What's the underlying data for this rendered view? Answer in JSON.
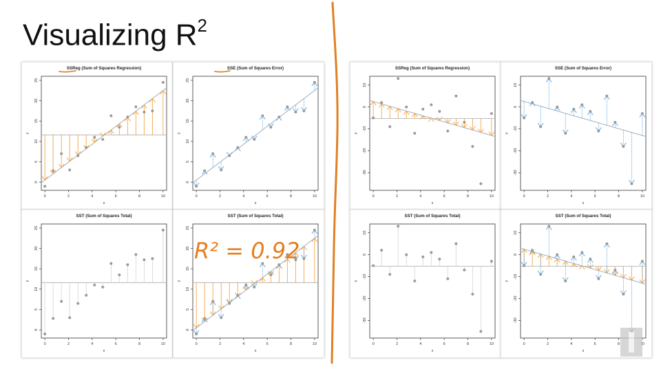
{
  "slide": {
    "title_text": "Visualizing R",
    "title_sup": "2",
    "annotation": "R² = 0.92"
  },
  "colors": {
    "point": "#9a9a9a",
    "fit_line": "#a9b4c4",
    "mean_line": "#b5b5b5",
    "orange": "#f5a543",
    "blue": "#67a9e0",
    "axis": "#333333",
    "divider": "#e07f22",
    "annotation": "#e87d1e",
    "underline": "#e08a2e"
  },
  "chart_data": [
    {
      "id": "a-ssreg",
      "type": "scatter",
      "title": "SSReg (Sum of Squares Regression)",
      "xlabel": "x",
      "ylabel": "y",
      "xlim": [
        -0.3,
        10.3
      ],
      "ylim": [
        -2,
        26
      ],
      "xticks": [
        0,
        2,
        4,
        6,
        8,
        10
      ],
      "yticks": [
        0,
        5,
        10,
        15,
        20,
        25
      ],
      "fit": [
        0.5,
        2.2
      ],
      "mean": 11.6,
      "segments": [
        "ssreg"
      ],
      "x": [
        0,
        0.7,
        1.4,
        2.1,
        2.8,
        3.5,
        4.2,
        4.9,
        5.6,
        6.3,
        7.0,
        7.7,
        8.4,
        9.1,
        10.0
      ],
      "y": [
        -1.0,
        2.8,
        7.0,
        3.0,
        6.5,
        8.5,
        11.0,
        10.5,
        16.3,
        13.5,
        16.0,
        18.5,
        17.2,
        17.5,
        24.5
      ]
    },
    {
      "id": "a-sse",
      "type": "scatter",
      "title": "SSE (Sum of Squares Error)",
      "xlabel": "x",
      "ylabel": "y",
      "xlim": [
        -0.3,
        10.3
      ],
      "ylim": [
        -2,
        26
      ],
      "xticks": [
        0,
        2,
        4,
        6,
        8,
        10
      ],
      "yticks": [
        0,
        5,
        10,
        15,
        20,
        25
      ],
      "fit": [
        0.5,
        2.2
      ],
      "mean": 11.6,
      "segments": [
        "sse"
      ],
      "x": [
        0,
        0.7,
        1.4,
        2.1,
        2.8,
        3.5,
        4.2,
        4.9,
        5.6,
        6.3,
        7.0,
        7.7,
        8.4,
        9.1,
        10.0
      ],
      "y": [
        -1.0,
        2.8,
        7.0,
        3.0,
        6.5,
        8.5,
        11.0,
        10.5,
        16.3,
        13.5,
        16.0,
        18.5,
        17.2,
        17.5,
        24.5
      ]
    },
    {
      "id": "a-sst",
      "type": "scatter",
      "title": "SST (Sum of Squares Total)",
      "xlabel": "x",
      "ylabel": "y",
      "xlim": [
        -0.3,
        10.3
      ],
      "ylim": [
        -2,
        26
      ],
      "xticks": [
        0,
        2,
        4,
        6,
        8,
        10
      ],
      "yticks": [
        0,
        5,
        10,
        15,
        20,
        25
      ],
      "fit": null,
      "mean": 11.6,
      "segments": [
        "sst"
      ],
      "x": [
        0,
        0.7,
        1.4,
        2.1,
        2.8,
        3.5,
        4.2,
        4.9,
        5.6,
        6.3,
        7.0,
        7.7,
        8.4,
        9.1,
        10.0
      ],
      "y": [
        -1.0,
        2.8,
        7.0,
        3.0,
        6.5,
        8.5,
        11.0,
        10.5,
        16.3,
        13.5,
        16.0,
        18.5,
        17.2,
        17.5,
        24.5
      ]
    },
    {
      "id": "a-sst2",
      "type": "scatter",
      "title": "SST (Sum of Squares Total)",
      "xlabel": "x",
      "ylabel": "y",
      "xlim": [
        -0.3,
        10.3
      ],
      "ylim": [
        -2,
        26
      ],
      "xticks": [
        0,
        2,
        4,
        6,
        8,
        10
      ],
      "yticks": [
        0,
        5,
        10,
        15,
        20,
        25
      ],
      "fit": [
        0.5,
        2.2
      ],
      "mean": 11.6,
      "segments": [
        "ssreg",
        "sse"
      ],
      "x": [
        0,
        0.7,
        1.4,
        2.1,
        2.8,
        3.5,
        4.2,
        4.9,
        5.6,
        6.3,
        7.0,
        7.7,
        8.4,
        9.1,
        10.0
      ],
      "y": [
        -1.0,
        2.8,
        7.0,
        3.0,
        6.5,
        8.5,
        11.0,
        10.5,
        16.3,
        13.5,
        16.0,
        18.5,
        17.2,
        17.5,
        24.5
      ]
    },
    {
      "id": "b-ssreg",
      "type": "scatter",
      "title": "SSReg (Sum of Squares Regression)",
      "xlabel": "x",
      "ylabel": "y",
      "xlim": [
        -0.3,
        10.3
      ],
      "ylim": [
        -38,
        14
      ],
      "xticks": [
        0,
        2,
        4,
        6,
        8,
        10
      ],
      "yticks": [
        -30,
        -20,
        -10,
        0,
        10
      ],
      "fit": [
        2.5,
        -1.55
      ],
      "mean": -5.3,
      "segments": [
        "ssreg"
      ],
      "x": [
        0,
        0.7,
        1.4,
        2.1,
        2.8,
        3.5,
        4.2,
        4.9,
        5.6,
        6.3,
        7.0,
        7.7,
        8.4,
        9.1,
        10.0
      ],
      "y": [
        -5.0,
        2.0,
        -9.0,
        13.0,
        0.0,
        -12.0,
        -1.0,
        1.0,
        -2.0,
        -11.0,
        5.0,
        -7.0,
        -18.0,
        -35.0,
        -3.0
      ]
    },
    {
      "id": "b-sse",
      "type": "scatter",
      "title": "SSE (Sum of Squares Error)",
      "xlabel": "x",
      "ylabel": "y",
      "xlim": [
        -0.3,
        10.3
      ],
      "ylim": [
        -38,
        14
      ],
      "xticks": [
        0,
        2,
        4,
        6,
        8,
        10
      ],
      "yticks": [
        -30,
        -20,
        -10,
        0,
        10
      ],
      "fit": [
        2.5,
        -1.55
      ],
      "mean": -5.3,
      "segments": [
        "sse"
      ],
      "x": [
        0,
        0.7,
        1.4,
        2.1,
        2.8,
        3.5,
        4.2,
        4.9,
        5.6,
        6.3,
        7.0,
        7.7,
        8.4,
        9.1,
        10.0
      ],
      "y": [
        -5.0,
        2.0,
        -9.0,
        13.0,
        0.0,
        -12.0,
        -1.0,
        1.0,
        -2.0,
        -11.0,
        5.0,
        -7.0,
        -18.0,
        -35.0,
        -3.0
      ]
    },
    {
      "id": "b-sst",
      "type": "scatter",
      "title": "SST (Sum of Squares Total)",
      "xlabel": "x",
      "ylabel": "y",
      "xlim": [
        -0.3,
        10.3
      ],
      "ylim": [
        -38,
        14
      ],
      "xticks": [
        0,
        2,
        4,
        6,
        8,
        10
      ],
      "yticks": [
        -30,
        -20,
        -10,
        0,
        10
      ],
      "fit": null,
      "mean": -5.3,
      "segments": [
        "sst"
      ],
      "x": [
        0,
        0.7,
        1.4,
        2.1,
        2.8,
        3.5,
        4.2,
        4.9,
        5.6,
        6.3,
        7.0,
        7.7,
        8.4,
        9.1,
        10.0
      ],
      "y": [
        -5.0,
        2.0,
        -9.0,
        13.0,
        0.0,
        -12.0,
        -1.0,
        1.0,
        -2.0,
        -11.0,
        5.0,
        -7.0,
        -18.0,
        -35.0,
        -3.0
      ]
    },
    {
      "id": "b-sst2",
      "type": "scatter",
      "title": "SST (Sum of Squares Total)",
      "xlabel": "x",
      "ylabel": "y",
      "xlim": [
        -0.3,
        10.3
      ],
      "ylim": [
        -38,
        14
      ],
      "xticks": [
        0,
        2,
        4,
        6,
        8,
        10
      ],
      "yticks": [
        -30,
        -20,
        -10,
        0,
        10
      ],
      "fit": [
        2.5,
        -1.55
      ],
      "mean": -5.3,
      "segments": [
        "ssreg",
        "sse"
      ],
      "x": [
        0,
        0.7,
        1.4,
        2.1,
        2.8,
        3.5,
        4.2,
        4.9,
        5.6,
        6.3,
        7.0,
        7.7,
        8.4,
        9.1,
        10.0
      ],
      "y": [
        -5.0,
        2.0,
        -9.0,
        13.0,
        0.0,
        -12.0,
        -1.0,
        1.0,
        -2.0,
        -11.0,
        5.0,
        -7.0,
        -18.0,
        -35.0,
        -3.0
      ]
    }
  ]
}
